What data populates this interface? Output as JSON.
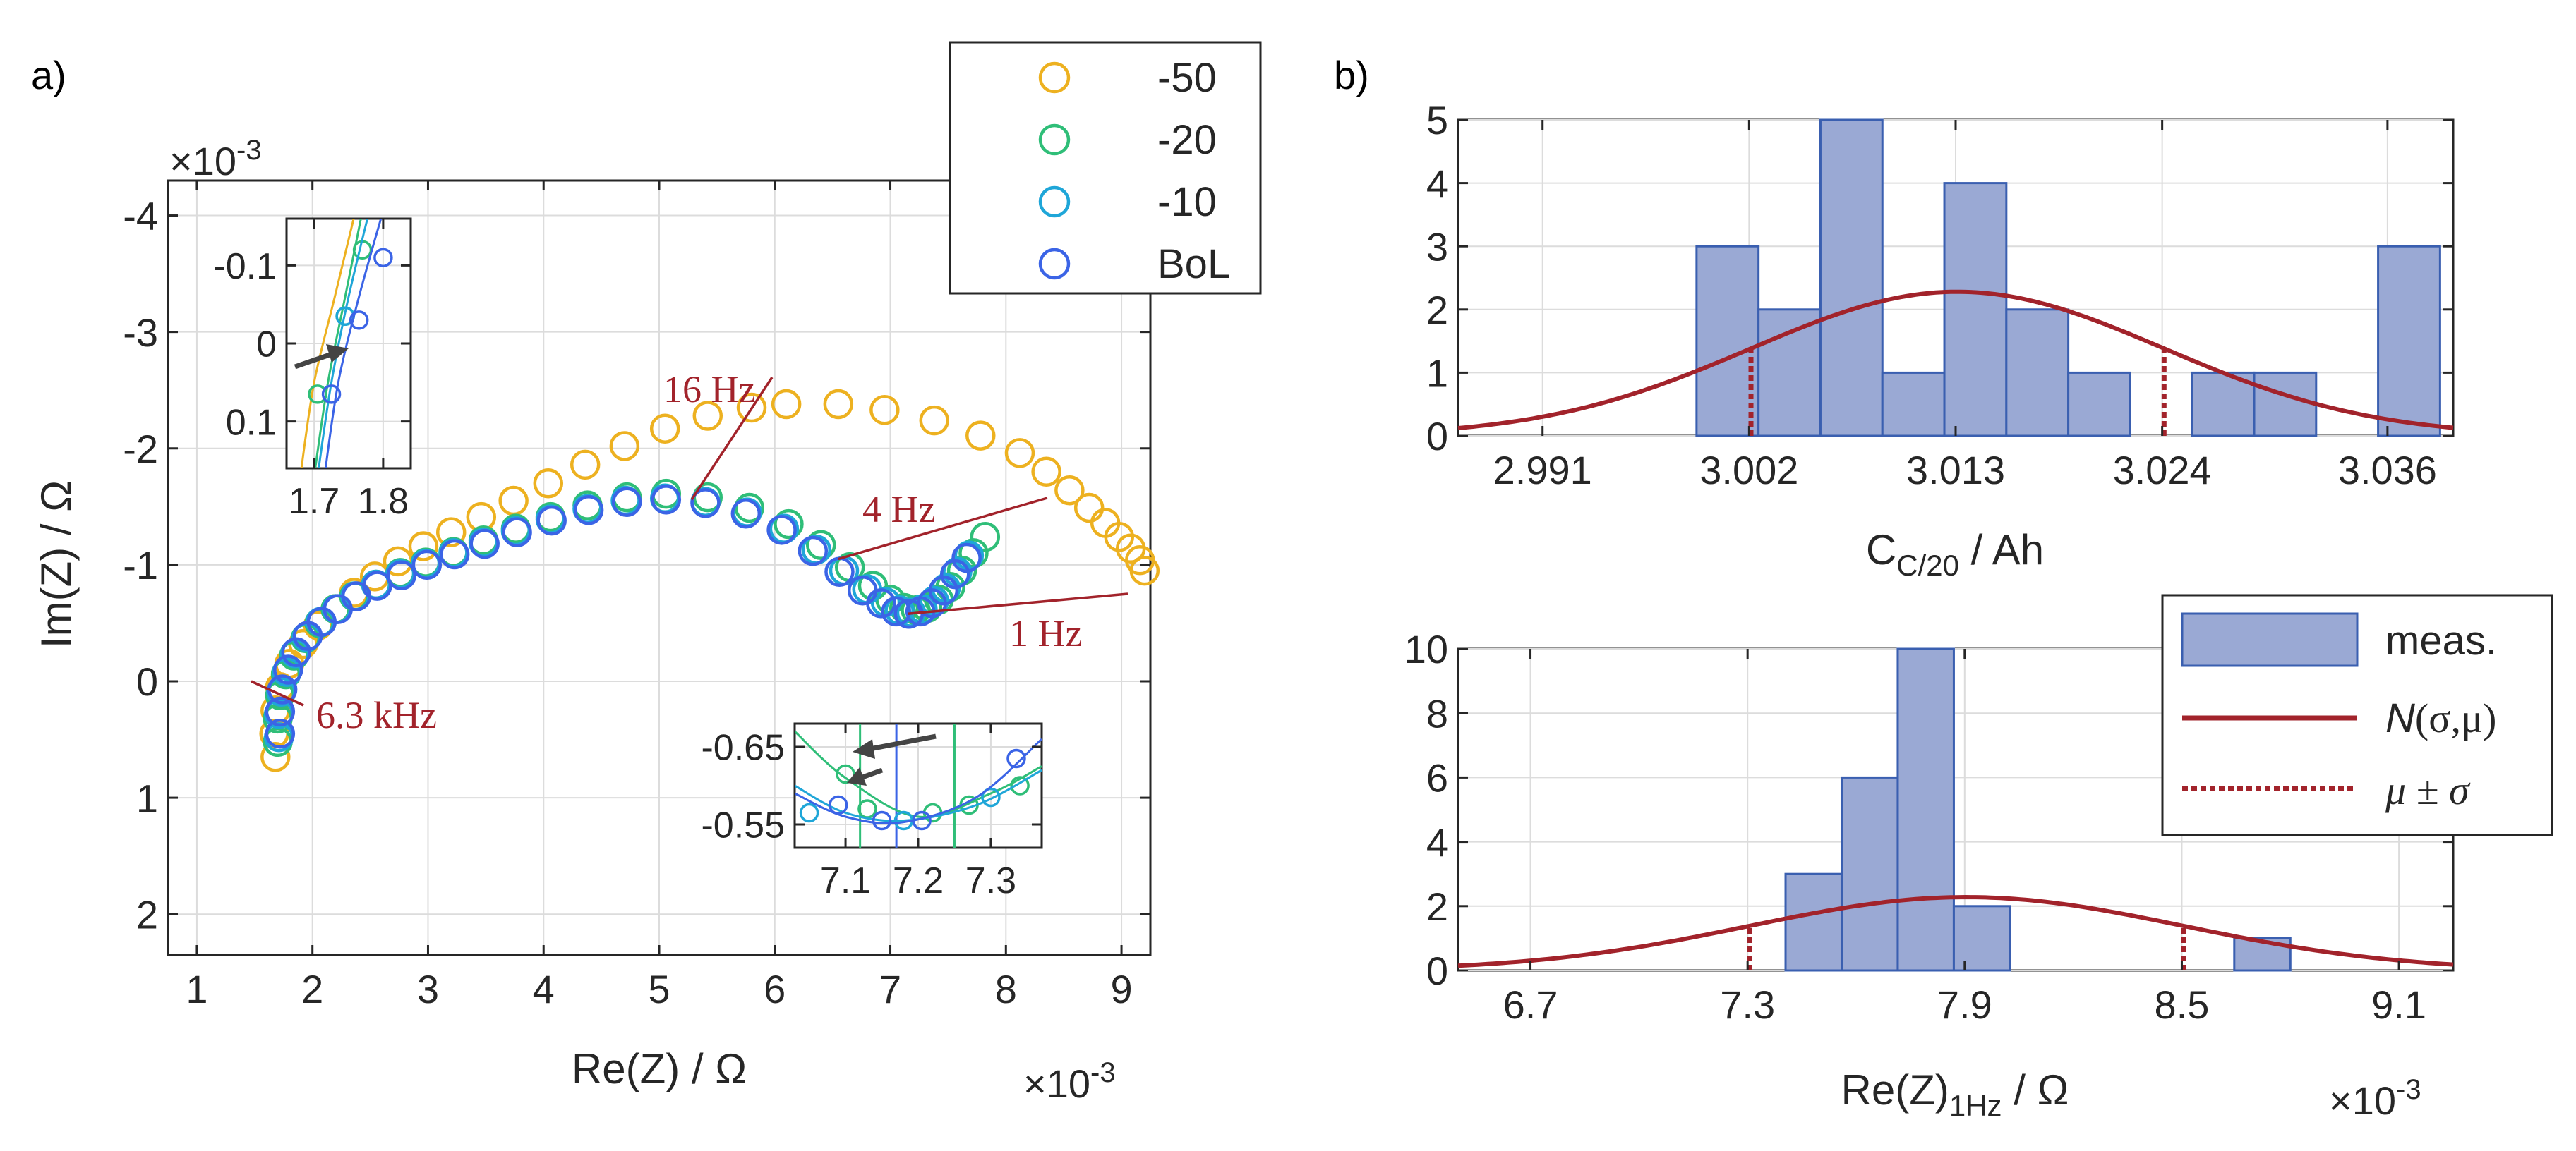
{
  "figure": {
    "panel_a_label": "a)",
    "panel_b_label": "b)"
  },
  "colors": {
    "orange": "#edb120",
    "green": "#2fbe78",
    "cyan": "#1fa6d8",
    "blue": "#3b64e6",
    "red": "#a2232b",
    "bar_fill": "#9aa9d4",
    "bar_edge": "#3a5fb0",
    "arrow": "#444444"
  },
  "chart_data": [
    {
      "id": "nyquist",
      "type": "scatter",
      "title": "",
      "xlabel": "Re(Z)   /   Ω",
      "ylabel": "Im(Z)   /   Ω",
      "xlim": [
        0.75,
        9.25
      ],
      "ylim": [
        2.35,
        -4.3
      ],
      "x_scale_label": "×10",
      "x_scale_exp": "-3",
      "y_scale_label": "×10",
      "y_scale_exp": "-3",
      "xticks": [
        1,
        2,
        3,
        4,
        5,
        6,
        7,
        8,
        9
      ],
      "xtick_labels": [
        "1",
        "2",
        "3",
        "4",
        "5",
        "6",
        "7",
        "8",
        "9"
      ],
      "yticks": [
        -4,
        -3,
        -2,
        -1,
        0,
        1,
        2
      ],
      "ytick_labels": [
        "-4",
        "-3",
        "-2",
        "-1",
        "0",
        "1",
        "2"
      ],
      "grid": true,
      "legend_position": "top-right",
      "series": [
        {
          "name": "-50",
          "color": "#edb120",
          "x": [
            1.68,
            1.67,
            1.68,
            1.72,
            1.8,
            1.92,
            2.05,
            2.2,
            2.36,
            2.54,
            2.74,
            2.96,
            3.2,
            3.46,
            3.74,
            4.04,
            4.36,
            4.7,
            5.05,
            5.42,
            5.8,
            6.1,
            6.55,
            6.95,
            7.38,
            7.78,
            8.12,
            8.35,
            8.55,
            8.72,
            8.86,
            8.98,
            9.08,
            9.16,
            9.2
          ],
          "y": [
            0.65,
            0.45,
            0.25,
            0.05,
            -0.15,
            -0.32,
            -0.48,
            -0.62,
            -0.76,
            -0.9,
            -1.03,
            -1.16,
            -1.28,
            -1.41,
            -1.55,
            -1.7,
            -1.86,
            -2.02,
            -2.17,
            -2.28,
            -2.35,
            -2.38,
            -2.38,
            -2.33,
            -2.24,
            -2.11,
            -1.96,
            -1.8,
            -1.64,
            -1.49,
            -1.36,
            -1.24,
            -1.14,
            -1.04,
            -0.95
          ]
        },
        {
          "name": "-20",
          "color": "#2fbe78",
          "x": [
            1.7,
            1.7,
            1.72,
            1.77,
            1.84,
            1.94,
            2.06,
            2.2,
            2.36,
            2.55,
            2.76,
            2.98,
            3.22,
            3.48,
            3.76,
            4.06,
            4.38,
            4.72,
            5.06,
            5.42,
            5.78,
            6.12,
            6.4,
            6.65,
            6.85,
            7.0,
            7.12,
            7.22,
            7.32,
            7.42,
            7.52,
            7.62,
            7.72,
            7.82
          ],
          "y": [
            0.52,
            0.32,
            0.12,
            -0.06,
            -0.22,
            -0.37,
            -0.5,
            -0.62,
            -0.73,
            -0.83,
            -0.93,
            -1.02,
            -1.11,
            -1.21,
            -1.31,
            -1.41,
            -1.51,
            -1.58,
            -1.61,
            -1.58,
            -1.49,
            -1.35,
            -1.17,
            -0.98,
            -0.82,
            -0.7,
            -0.63,
            -0.61,
            -0.63,
            -0.7,
            -0.81,
            -0.95,
            -1.1,
            -1.24
          ]
        },
        {
          "name": "-10",
          "color": "#1fa6d8",
          "x": [
            1.71,
            1.71,
            1.73,
            1.78,
            1.85,
            1.95,
            2.07,
            2.21,
            2.37,
            2.55,
            2.76,
            2.98,
            3.22,
            3.48,
            3.76,
            4.06,
            4.38,
            4.71,
            5.05,
            5.4,
            5.76,
            6.08,
            6.36,
            6.6,
            6.8,
            6.96,
            7.08,
            7.18,
            7.28,
            7.38,
            7.48,
            7.58,
            7.68
          ],
          "y": [
            0.48,
            0.28,
            0.09,
            -0.08,
            -0.24,
            -0.38,
            -0.51,
            -0.62,
            -0.73,
            -0.83,
            -0.92,
            -1.01,
            -1.1,
            -1.19,
            -1.29,
            -1.39,
            -1.48,
            -1.55,
            -1.57,
            -1.54,
            -1.45,
            -1.31,
            -1.13,
            -0.95,
            -0.79,
            -0.68,
            -0.61,
            -0.59,
            -0.62,
            -0.69,
            -0.8,
            -0.94,
            -1.08
          ]
        },
        {
          "name": "BoL",
          "color": "#3b64e6",
          "x": [
            1.72,
            1.72,
            1.74,
            1.79,
            1.86,
            1.96,
            2.08,
            2.22,
            2.38,
            2.56,
            2.77,
            2.99,
            3.23,
            3.49,
            3.77,
            4.07,
            4.39,
            4.72,
            5.06,
            5.4,
            5.75,
            6.06,
            6.33,
            6.56,
            6.76,
            6.92,
            7.05,
            7.16,
            7.26,
            7.36,
            7.46,
            7.56,
            7.66
          ],
          "y": [
            0.45,
            0.26,
            0.07,
            -0.1,
            -0.25,
            -0.39,
            -0.51,
            -0.62,
            -0.73,
            -0.82,
            -0.91,
            -1.0,
            -1.09,
            -1.18,
            -1.28,
            -1.38,
            -1.47,
            -1.54,
            -1.56,
            -1.53,
            -1.44,
            -1.3,
            -1.12,
            -0.94,
            -0.78,
            -0.67,
            -0.6,
            -0.58,
            -0.6,
            -0.67,
            -0.78,
            -0.92,
            -1.06
          ]
        }
      ],
      "annotations": [
        {
          "text": "16 Hz",
          "target_x": 5.28,
          "target_y": -1.56
        },
        {
          "text": "4 Hz",
          "target_x": 6.55,
          "target_y": -1.05
        },
        {
          "text": "1 Hz",
          "target_x": 7.15,
          "target_y": -0.58
        },
        {
          "text": "6.3 kHz",
          "target_x": 1.68,
          "target_y": 0.08
        }
      ],
      "inset_high_freq": {
        "xlim": [
          1.66,
          1.84
        ],
        "ylim": [
          0.16,
          -0.16
        ],
        "xticks": [
          1.7,
          1.8
        ],
        "xtick_labels": [
          "1.7",
          "1.8"
        ],
        "yticks": [
          -0.1,
          0,
          0.1
        ],
        "ytick_labels": [
          "-0.1",
          "0",
          "0.1"
        ]
      },
      "inset_low_freq": {
        "xlim": [
          7.03,
          7.37
        ],
        "ylim": [
          -0.52,
          -0.68
        ],
        "xticks": [
          7.1,
          7.2,
          7.3
        ],
        "xtick_labels": [
          "7.1",
          "7.2",
          "7.3"
        ],
        "yticks": [
          -0.65,
          -0.55
        ],
        "ytick_labels": [
          "-0.65",
          "-0.55"
        ]
      }
    },
    {
      "id": "hist_capacity",
      "type": "bar",
      "xlabel_main": "C",
      "xlabel_sub": "C/20",
      "xlabel_rest": "   /   Ah",
      "xlim": [
        2.9865,
        3.0395
      ],
      "ylim": [
        0,
        5
      ],
      "xticks": [
        2.991,
        3.002,
        3.013,
        3.024,
        3.036
      ],
      "xtick_labels": [
        "2.991",
        "3.002",
        "3.013",
        "3.024",
        "3.036"
      ],
      "yticks": [
        0,
        1,
        2,
        3,
        4,
        5
      ],
      "ytick_labels": [
        "0",
        "1",
        "2",
        "3",
        "4",
        "5"
      ],
      "grid": true,
      "bin_edges": [
        2.9992,
        3.0025,
        3.0058,
        3.0091,
        3.0124,
        3.0157,
        3.019,
        3.0223,
        3.0256,
        3.0289,
        3.0322,
        3.0355
      ],
      "counts": [
        3,
        2,
        5,
        1,
        4,
        2,
        1,
        0,
        1,
        1,
        0,
        3
      ],
      "bin_edges_start": 2.9992,
      "bin_width": 0.0033,
      "normal_fit": {
        "mu": 3.0131,
        "sigma": 0.011,
        "peak": 2.28
      },
      "mu_minus_sigma": 3.0021,
      "mu_plus_sigma": 3.0241
    },
    {
      "id": "hist_re1hz",
      "type": "bar",
      "xlabel_main": "Re(Z)",
      "xlabel_sub": "1Hz",
      "xlabel_rest": "   /   Ω",
      "x_scale_label": "×10",
      "x_scale_exp": "-3",
      "xlim": [
        6.5,
        9.25
      ],
      "ylim": [
        0,
        10
      ],
      "xticks": [
        6.7,
        7.3,
        7.9,
        8.5,
        9.1
      ],
      "xtick_labels": [
        "6.7",
        "7.3",
        "7.9",
        "8.5",
        "9.1"
      ],
      "yticks": [
        0,
        2,
        4,
        6,
        8,
        10
      ],
      "ytick_labels": [
        "0",
        "2",
        "4",
        "6",
        "8",
        "10"
      ],
      "grid": true,
      "bin_edges_start": 7.405,
      "bin_width": 0.155,
      "counts": [
        3,
        6,
        10,
        2,
        0,
        0,
        0,
        0,
        1
      ],
      "normal_fit": {
        "mu": 7.905,
        "sigma": 0.6,
        "peak": 2.28
      },
      "mu_minus_sigma": 7.305,
      "mu_plus_sigma": 8.505,
      "legend_position": "top-right",
      "legend": {
        "meas": "meas.",
        "normal": "N",
        "normal_args": "(σ,μ)",
        "mu_sigma": "μ ± σ"
      }
    }
  ]
}
